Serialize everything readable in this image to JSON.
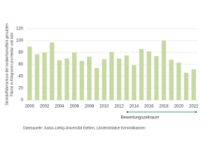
{
  "chart_data": {
    "type": "bar",
    "y_label_lines": [
      "Stickstoffüberschuss der landwirtschaftlich genutzten",
      "Fläche in Kilogramm pro Hektar und Jahr"
    ],
    "categories": [
      "2000",
      null,
      "2002",
      null,
      "2004",
      null,
      "2006",
      null,
      "2008",
      null,
      "2010",
      null,
      "2012",
      null,
      "2014",
      null,
      "2016",
      null,
      "2018",
      null,
      "2020",
      null,
      "2022"
    ],
    "values": [
      90,
      77,
      80,
      97,
      67,
      70,
      80,
      66,
      73,
      54,
      69,
      81,
      70,
      75,
      59,
      86,
      82,
      74,
      100,
      68,
      63,
      46,
      52
    ],
    "color": "#c6d9a2",
    "ylim": [
      0,
      120
    ],
    "yticks": [
      0,
      20,
      40,
      60,
      80,
      100,
      120
    ],
    "grid": true,
    "annotation": "Bewertungszeitraum",
    "source": "Datenquelle: Justus-Liebig-Universität Gießen, Länderinitiative Kernindikatoren"
  }
}
